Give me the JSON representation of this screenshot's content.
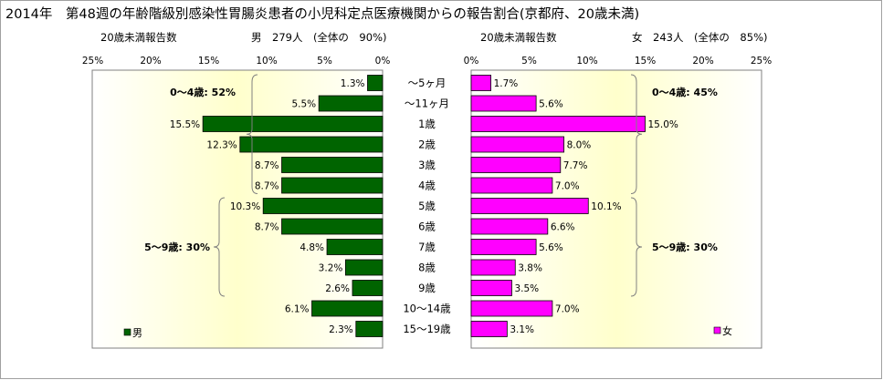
{
  "title": "2014年　第48週の年齢階級別感染性胃腸炎患者の小児科定点医療機関からの報告割合(京都府、20歳未満)",
  "colors": {
    "male": "#006400",
    "female": "#ff00ff",
    "frame": "#808080",
    "plot_fill_center": "#ffffcc"
  },
  "chart_data": [
    {
      "type": "bar",
      "orientation": "horizontal-reversed",
      "side": "male",
      "header_left": "20歳未満報告数",
      "header_right": "男　279人　(全体の　90%)",
      "legend": "男",
      "xlim": [
        0,
        25
      ],
      "ticks": [
        "25%",
        "20%",
        "15%",
        "10%",
        "5%",
        "0%"
      ],
      "tick_values": [
        25,
        20,
        15,
        10,
        5,
        0
      ],
      "categories": [
        "～5ヶ月",
        "～11ヶ月",
        "1歳",
        "2歳",
        "3歳",
        "4歳",
        "5歳",
        "6歳",
        "7歳",
        "8歳",
        "9歳",
        "10～14歳",
        "15～19歳"
      ],
      "values": [
        1.3,
        5.5,
        15.5,
        12.3,
        8.7,
        8.7,
        10.3,
        8.7,
        4.8,
        3.2,
        2.6,
        6.1,
        2.3
      ],
      "labels": [
        "1.3%",
        "5.5%",
        "15.5%",
        "12.3%",
        "8.7%",
        "8.7%",
        "10.3%",
        "8.7%",
        "4.8%",
        "3.2%",
        "2.6%",
        "6.1%",
        "2.3%"
      ],
      "groups": [
        {
          "text": "0～4歳: 52%",
          "from": 0,
          "to": 5
        },
        {
          "text": "5～9歳: 30%",
          "from": 6,
          "to": 10
        }
      ]
    },
    {
      "type": "bar",
      "orientation": "horizontal",
      "side": "female",
      "header_left": "20歳未満報告数",
      "header_right": "女　243人　(全体の　85%)",
      "legend": "女",
      "xlim": [
        0,
        25
      ],
      "ticks": [
        "0%",
        "5%",
        "10%",
        "15%",
        "20%",
        "25%"
      ],
      "tick_values": [
        0,
        5,
        10,
        15,
        20,
        25
      ],
      "categories": [
        "～5ヶ月",
        "～11ヶ月",
        "1歳",
        "2歳",
        "3歳",
        "4歳",
        "5歳",
        "6歳",
        "7歳",
        "8歳",
        "9歳",
        "10～14歳",
        "15～19歳"
      ],
      "values": [
        1.7,
        5.6,
        15.0,
        8.0,
        7.7,
        7.0,
        10.1,
        6.6,
        5.6,
        3.8,
        3.5,
        7.0,
        3.1
      ],
      "labels": [
        "1.7%",
        "5.6%",
        "15.0%",
        "8.0%",
        "7.7%",
        "7.0%",
        "10.1%",
        "6.6%",
        "5.6%",
        "3.8%",
        "3.5%",
        "7.0%",
        "3.1%"
      ],
      "groups": [
        {
          "text": "0～4歳: 45%",
          "from": 0,
          "to": 5
        },
        {
          "text": "5～9歳: 30%",
          "from": 6,
          "to": 10
        }
      ]
    }
  ]
}
